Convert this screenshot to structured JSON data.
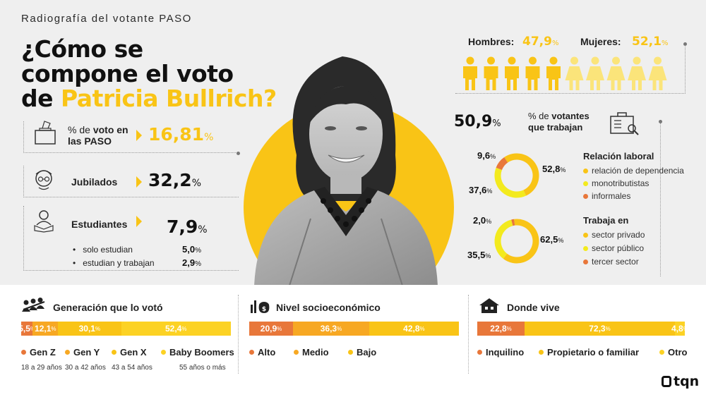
{
  "kicker": "Radiografía del votante PASO",
  "title": {
    "line1": "¿Cómo se",
    "line2": "compone el voto",
    "line3_prefix": "de ",
    "line3_name": "Patricia Bullrich?"
  },
  "left": {
    "paso": {
      "label_pre": "% de ",
      "label_bold": "voto en",
      "label_line2": "las PASO",
      "value": "16,81",
      "unit": "%"
    },
    "jubilados": {
      "label": "Jubilados",
      "value": "32,2",
      "unit": "%"
    },
    "estudiantes": {
      "label": "Estudiantes",
      "value": "7,9",
      "unit": "%",
      "sub": [
        {
          "label": "solo estudian",
          "value": "5,0",
          "unit": "%"
        },
        {
          "label": "estudian y trabajan",
          "value": "2,9",
          "unit": "%"
        }
      ]
    }
  },
  "gender": {
    "men_label": "Hombres:",
    "men_value": "47,9",
    "women_label": "Mujeres:",
    "women_value": "52,1",
    "unit": "%",
    "colors": {
      "men": "#f9c416",
      "women": "#fbe47a"
    }
  },
  "work": {
    "value": "50,9",
    "unit": "%",
    "label_pre": "% de ",
    "label_bold": "votantes",
    "label_line2": "que trabajan"
  },
  "colors": {
    "orange": "#e8773a",
    "amber": "#f7a823",
    "yellow": "#f9c416",
    "light_yellow": "#fbe10a",
    "pale": "#fbe47a"
  },
  "chart_data": [
    {
      "type": "pie",
      "title": "Relación laboral",
      "labels": [
        "relación de dependencia",
        "monotributistas",
        "informales"
      ],
      "values": [
        52.8,
        37.6,
        9.6
      ],
      "value_labels": [
        "52,8",
        "37,6",
        "9,6"
      ],
      "colors": [
        "#f9c416",
        "#f3ea1e",
        "#e8773a"
      ]
    },
    {
      "type": "pie",
      "title": "Trabaja en",
      "labels": [
        "sector privado",
        "sector público",
        "tercer sector"
      ],
      "values": [
        62.5,
        35.5,
        2.0
      ],
      "value_labels": [
        "62,5",
        "35,5",
        "2,0"
      ],
      "colors": [
        "#f9c416",
        "#f3ea1e",
        "#e8773a"
      ]
    },
    {
      "type": "bar",
      "title": "Generación que lo votó",
      "labels": [
        "Gen Z",
        "Gen Y",
        "Gen X",
        "Baby Boomers"
      ],
      "sublabels": [
        "18 a 29 años",
        "30 a 42 años",
        "43 a 54 años",
        "55 años o más"
      ],
      "values": [
        5.5,
        12.1,
        30.1,
        52.4
      ],
      "value_labels": [
        "5,5",
        "12,1",
        "30,1",
        "52,4"
      ],
      "colors": [
        "#e8773a",
        "#f7a823",
        "#f9c416",
        "#fcd224"
      ]
    },
    {
      "type": "bar",
      "title": "Nivel socioeconómico",
      "labels": [
        "Alto",
        "Medio",
        "Bajo"
      ],
      "values": [
        20.9,
        36.3,
        42.8
      ],
      "value_labels": [
        "20,9",
        "36,3",
        "42,8"
      ],
      "colors": [
        "#e8773a",
        "#f7a823",
        "#f9c416"
      ]
    },
    {
      "type": "bar",
      "title": "Donde vive",
      "labels": [
        "Inquilino",
        "Propietario o familiar",
        "Otro"
      ],
      "values": [
        22.8,
        72.3,
        4.8
      ],
      "value_labels": [
        "22,8",
        "72,3",
        "4,8"
      ],
      "colors": [
        "#e8773a",
        "#f9c416",
        "#fcd224"
      ]
    }
  ],
  "brand": "tqn"
}
